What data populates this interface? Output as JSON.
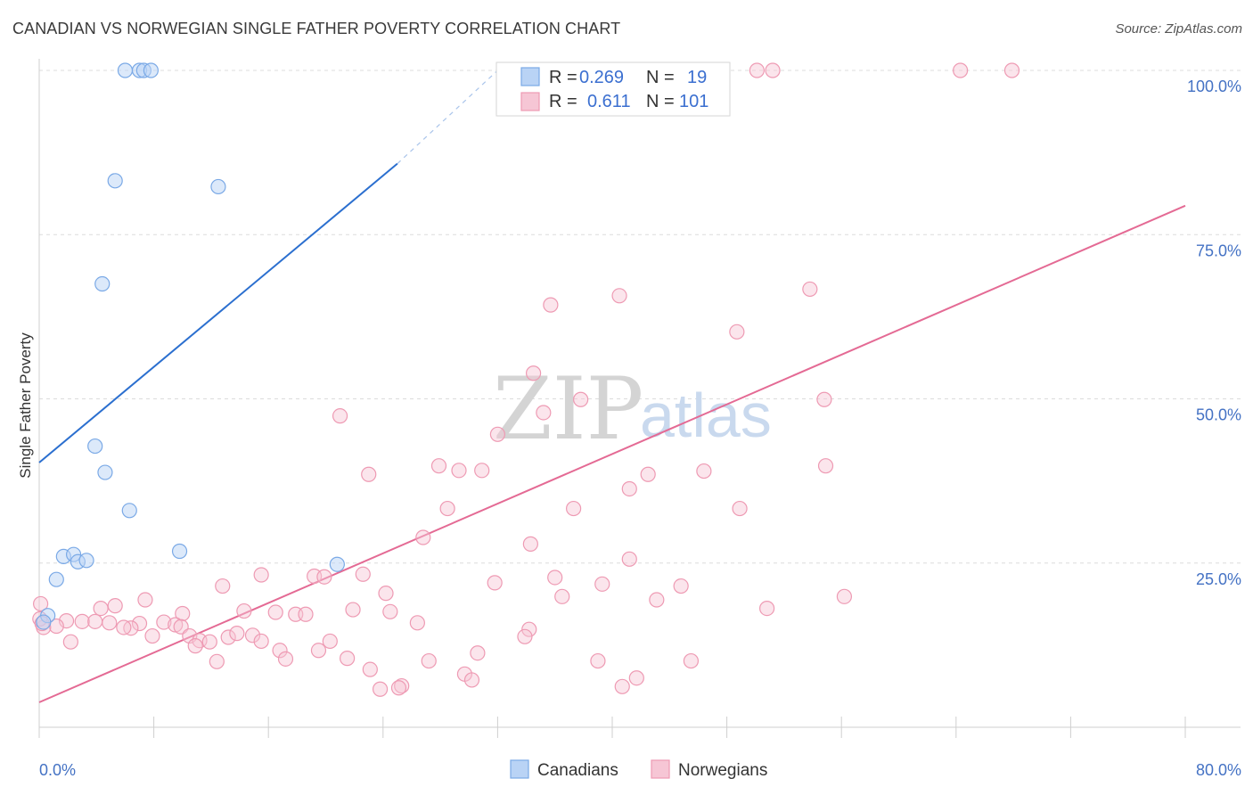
{
  "title": "CANADIAN VS NORWEGIAN SINGLE FATHER POVERTY CORRELATION CHART",
  "source": "Source: ZipAtlas.com",
  "watermark": {
    "zip": "ZIP",
    "atlas": "atlas"
  },
  "colors": {
    "canadians": "#7aa9e6",
    "canadians_fill": "#b9d3f5",
    "canadians_line": "#2b6fcf",
    "norwegians": "#ee9ab3",
    "norwegians_fill": "#f6c6d5",
    "norwegians_line": "#e46a94",
    "tick_text": "#4472c4"
  },
  "legend_top": {
    "rows": [
      {
        "r_label": "R =",
        "r_value": "0.269",
        "n_label": "N =",
        "n_value": "19"
      },
      {
        "r_label": "R =",
        "r_value": "0.611",
        "n_label": "N =",
        "n_value": "101"
      }
    ]
  },
  "legend_bottom": {
    "items": [
      "Canadians",
      "Norwegians"
    ]
  },
  "chart_data": {
    "type": "scatter",
    "title": "CANADIAN VS NORWEGIAN SINGLE FATHER POVERTY CORRELATION CHART",
    "xlabel": "",
    "ylabel": "Single Father Poverty",
    "xlim": [
      0,
      80
    ],
    "ylim": [
      0,
      100
    ],
    "x_tick_labels": [
      "0.0%",
      "80.0%"
    ],
    "y_tick_labels": [
      "25.0%",
      "50.0%",
      "75.0%",
      "100.0%"
    ],
    "y_ticks": [
      25,
      50,
      75,
      100
    ],
    "grid": true,
    "legend_position": "top-center",
    "series": [
      {
        "name": "Canadians",
        "points": [
          [
            6.0,
            100
          ],
          [
            7.0,
            100
          ],
          [
            7.3,
            100
          ],
          [
            7.8,
            100
          ],
          [
            5.3,
            83.2
          ],
          [
            12.5,
            82.3
          ],
          [
            4.4,
            67.5
          ],
          [
            3.9,
            42.8
          ],
          [
            4.6,
            38.8
          ],
          [
            6.3,
            33.0
          ],
          [
            9.8,
            26.8
          ],
          [
            1.7,
            26.0
          ],
          [
            2.4,
            26.3
          ],
          [
            2.7,
            25.2
          ],
          [
            3.3,
            25.4
          ],
          [
            20.8,
            24.8
          ],
          [
            1.2,
            22.5
          ],
          [
            0.6,
            17.0
          ],
          [
            0.3,
            16.0
          ]
        ],
        "trend": {
          "x": [
            0,
            25
          ],
          "y": [
            40.3,
            85.8
          ]
        },
        "trend_dashed": {
          "x": [
            25,
            32
          ],
          "y": [
            85.8,
            100
          ]
        }
      },
      {
        "name": "Norwegians",
        "points": [
          [
            38.5,
            100
          ],
          [
            45.8,
            100
          ],
          [
            47.0,
            100
          ],
          [
            50.1,
            100
          ],
          [
            51.2,
            100
          ],
          [
            64.3,
            100
          ],
          [
            67.9,
            100
          ],
          [
            35.7,
            64.3
          ],
          [
            40.5,
            65.7
          ],
          [
            53.8,
            66.7
          ],
          [
            48.7,
            60.2
          ],
          [
            34.5,
            53.9
          ],
          [
            37.8,
            49.9
          ],
          [
            54.8,
            49.9
          ],
          [
            35.2,
            47.9
          ],
          [
            21.0,
            47.4
          ],
          [
            32.0,
            44.6
          ],
          [
            27.9,
            39.8
          ],
          [
            29.3,
            39.1
          ],
          [
            30.9,
            39.1
          ],
          [
            23.0,
            38.5
          ],
          [
            42.5,
            38.5
          ],
          [
            46.4,
            39.0
          ],
          [
            54.9,
            39.8
          ],
          [
            41.2,
            36.3
          ],
          [
            28.5,
            33.3
          ],
          [
            37.3,
            33.3
          ],
          [
            48.9,
            33.3
          ],
          [
            26.8,
            28.9
          ],
          [
            34.3,
            27.9
          ],
          [
            41.2,
            25.6
          ],
          [
            15.5,
            23.2
          ],
          [
            19.2,
            23.0
          ],
          [
            19.9,
            22.9
          ],
          [
            22.6,
            23.3
          ],
          [
            31.8,
            22.0
          ],
          [
            36.0,
            22.8
          ],
          [
            39.3,
            21.8
          ],
          [
            44.8,
            21.5
          ],
          [
            12.8,
            21.5
          ],
          [
            24.2,
            20.4
          ],
          [
            36.5,
            19.9
          ],
          [
            56.2,
            19.9
          ],
          [
            43.1,
            19.4
          ],
          [
            7.4,
            19.4
          ],
          [
            5.3,
            18.5
          ],
          [
            4.3,
            18.1
          ],
          [
            10.0,
            17.3
          ],
          [
            14.3,
            17.7
          ],
          [
            16.5,
            17.5
          ],
          [
            17.9,
            17.2
          ],
          [
            18.6,
            17.2
          ],
          [
            21.9,
            17.9
          ],
          [
            24.5,
            17.6
          ],
          [
            50.8,
            18.1
          ],
          [
            1.9,
            16.2
          ],
          [
            3.0,
            16.1
          ],
          [
            3.9,
            16.1
          ],
          [
            4.9,
            15.9
          ],
          [
            7.0,
            15.8
          ],
          [
            8.7,
            16.0
          ],
          [
            9.5,
            15.6
          ],
          [
            26.4,
            15.9
          ],
          [
            1.2,
            15.4
          ],
          [
            0.3,
            15.2
          ],
          [
            6.4,
            15.1
          ],
          [
            5.9,
            15.2
          ],
          [
            9.9,
            15.3
          ],
          [
            34.2,
            14.9
          ],
          [
            33.9,
            13.8
          ],
          [
            7.9,
            13.9
          ],
          [
            10.5,
            13.9
          ],
          [
            11.2,
            13.2
          ],
          [
            11.9,
            13.0
          ],
          [
            13.2,
            13.7
          ],
          [
            13.8,
            14.3
          ],
          [
            14.9,
            14.0
          ],
          [
            15.5,
            13.1
          ],
          [
            20.3,
            13.1
          ],
          [
            2.2,
            13.0
          ],
          [
            10.9,
            12.4
          ],
          [
            16.8,
            11.7
          ],
          [
            19.5,
            11.7
          ],
          [
            30.6,
            11.3
          ],
          [
            17.2,
            10.4
          ],
          [
            21.5,
            10.5
          ],
          [
            12.4,
            10.0
          ],
          [
            27.2,
            10.1
          ],
          [
            39.0,
            10.1
          ],
          [
            45.5,
            10.1
          ],
          [
            23.1,
            8.8
          ],
          [
            29.7,
            8.1
          ],
          [
            30.2,
            7.2
          ],
          [
            41.7,
            7.5
          ],
          [
            40.7,
            6.2
          ],
          [
            25.3,
            6.3
          ],
          [
            25.1,
            6.0
          ],
          [
            23.8,
            5.8
          ],
          [
            0.1,
            18.8
          ],
          [
            0.05,
            16.5
          ],
          [
            0.2,
            15.8
          ]
        ],
        "trend": {
          "x": [
            0,
            80
          ],
          "y": [
            3.8,
            79.4
          ]
        }
      }
    ]
  }
}
